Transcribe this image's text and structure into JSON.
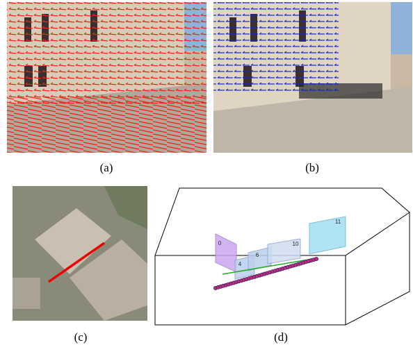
{
  "panels": [
    {
      "label": "(a)"
    },
    {
      "label": "(b)"
    },
    {
      "label": "(c)"
    },
    {
      "label": "(d)"
    }
  ],
  "plane_labels": [
    "0",
    "4",
    "6",
    "10",
    "11"
  ]
}
